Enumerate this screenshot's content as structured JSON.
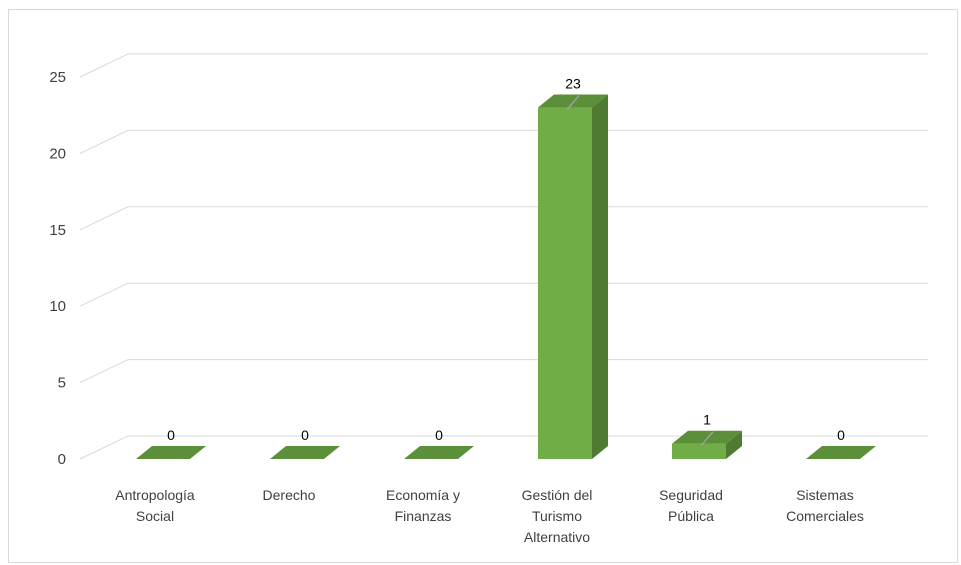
{
  "chart_data": {
    "type": "bar",
    "title": "",
    "xlabel": "",
    "ylabel": "",
    "categories": [
      [
        "Antropología",
        "Social"
      ],
      [
        "Derecho"
      ],
      [
        "Economía y",
        "Finanzas"
      ],
      [
        "Gestión del",
        "Turismo",
        "Alternativo"
      ],
      [
        "Seguridad",
        "Pública"
      ],
      [
        "Sistemas",
        "Comerciales"
      ]
    ],
    "values": [
      0,
      0,
      0,
      23,
      1,
      0
    ],
    "data_labels": [
      "0",
      "0",
      "0",
      "23",
      "1",
      "0"
    ],
    "ylim": [
      0,
      25
    ],
    "y_ticks": [
      0,
      5,
      10,
      15,
      20,
      25
    ],
    "grid": true,
    "style": "3d-column",
    "colors": {
      "bar_front": "#70ad47",
      "bar_top": "#5c8f3a",
      "bar_side": "#4e7a31",
      "gridline": "#d9d9d9",
      "axis_text": "#404040"
    }
  }
}
